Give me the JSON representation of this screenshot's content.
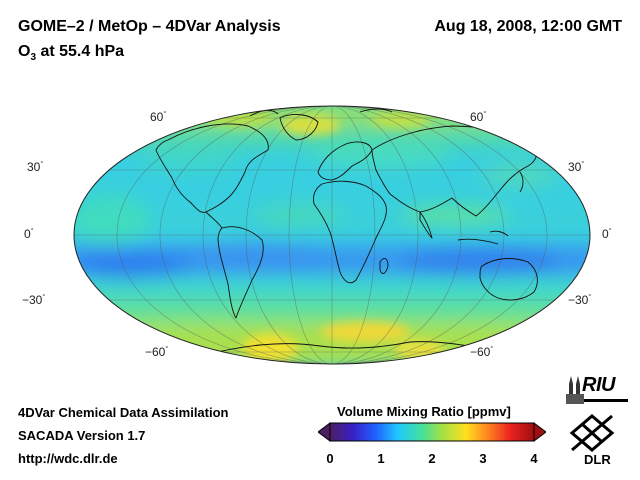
{
  "header": {
    "title": "GOME–2 / MetOp – 4DVar Analysis",
    "datetime": "Aug 18, 2008, 12:00 GMT",
    "subtitle_species": "O",
    "subtitle_sub": "3",
    "subtitle_rest": " at 55.4 hPa"
  },
  "map": {
    "projection": "Hammer / Mollweide equal-area",
    "lat_labels": {
      "n60": "60",
      "n30": "30",
      "eq": "0",
      "s30": "−30",
      "s60": "−60",
      "degree_symbol": "°"
    }
  },
  "footer": {
    "line1": "4DVar Chemical Data Assimilation",
    "line2": "SACADA Version 1.7",
    "line3": "http://wdc.dlr.de"
  },
  "colorbar": {
    "title": "Volume Mixing Ratio [ppmv]",
    "ticks": [
      "0",
      "1",
      "2",
      "3",
      "4"
    ],
    "min": 0,
    "max": 4,
    "colors": [
      "#4a2060",
      "#3a1fc8",
      "#2060ff",
      "#20c8ff",
      "#40e0a0",
      "#a8e040",
      "#ffe020",
      "#ff8020",
      "#e82020",
      "#a01010"
    ]
  },
  "logos": {
    "riu": "RIU",
    "dlr": "DLR"
  }
}
